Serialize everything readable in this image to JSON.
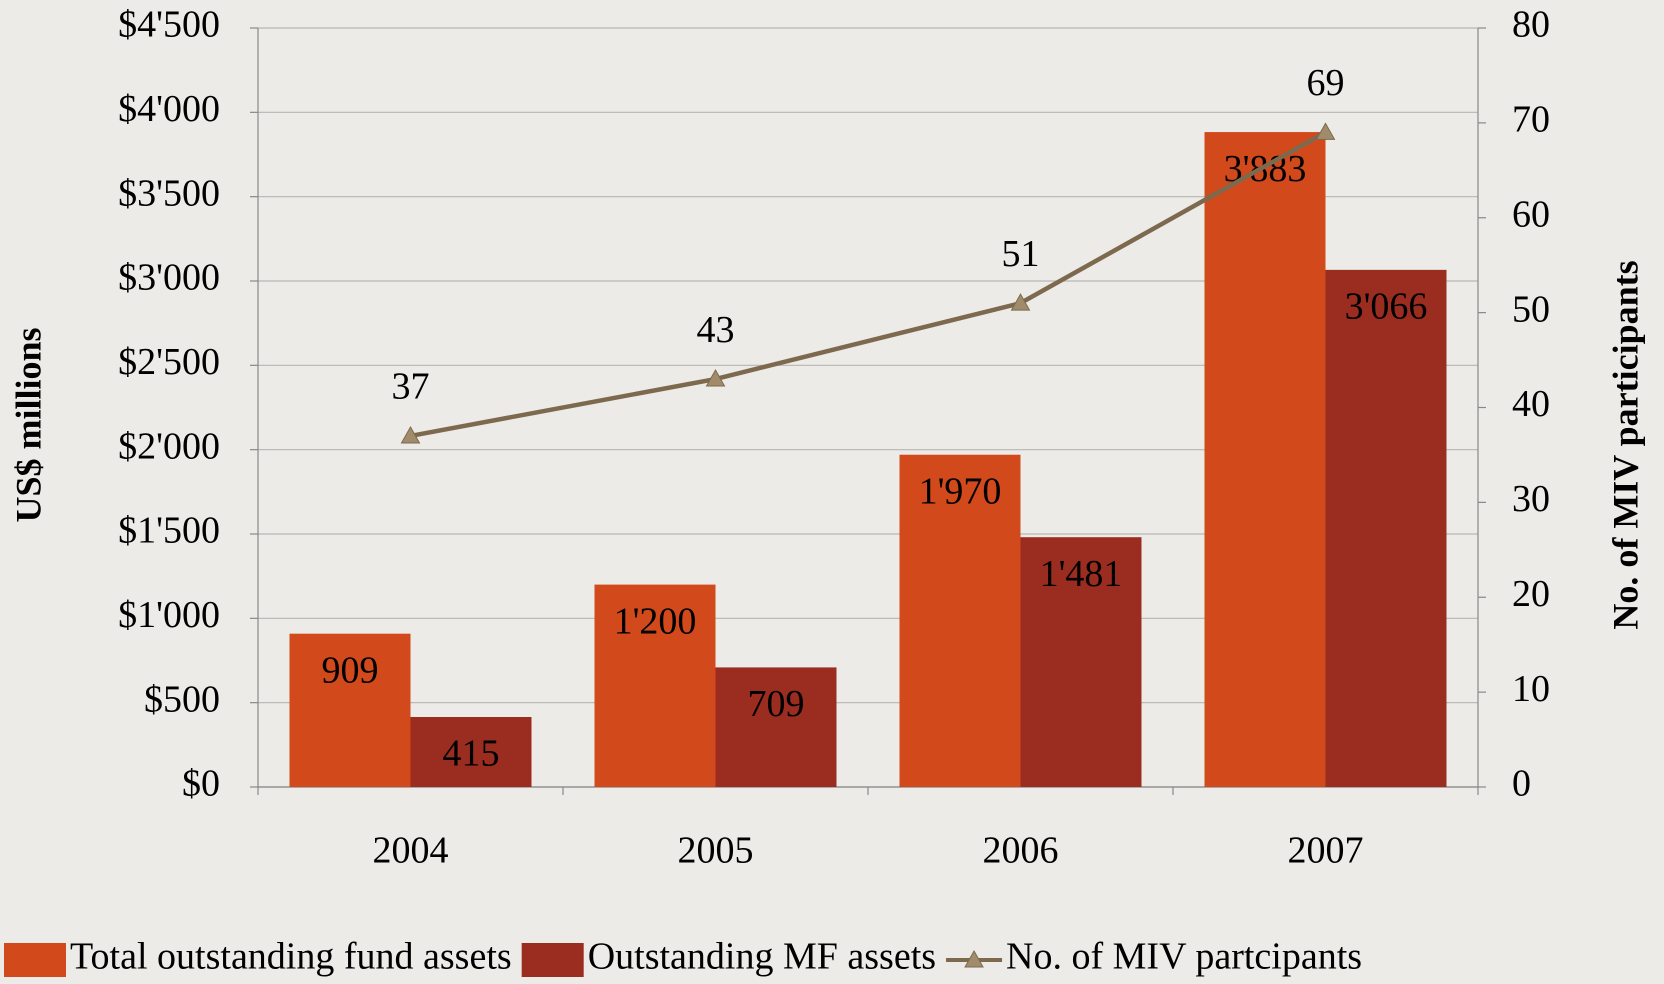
{
  "chart_data": {
    "type": "bar",
    "categories": [
      "2004",
      "2005",
      "2006",
      "2007"
    ],
    "series": [
      {
        "name": "Total outstanding fund assets",
        "color": "#d2491c",
        "values": [
          909,
          1200,
          1970,
          3883
        ],
        "value_labels": [
          "909",
          "1'200",
          "1'970",
          "3'883"
        ]
      },
      {
        "name": "Outstanding MF assets",
        "color": "#9b2c20",
        "values": [
          415,
          709,
          1481,
          3066
        ],
        "value_labels": [
          "415",
          "709",
          "1'481",
          "3'066"
        ]
      },
      {
        "name": "No. of MIV partcipants",
        "type": "line",
        "axis": "y2",
        "color": "#7d6a4e",
        "values": [
          37,
          43,
          51,
          69
        ]
      }
    ],
    "ylabel": "US$ millions",
    "y2label": "No. of MIV participants",
    "ylim": [
      0,
      4500
    ],
    "yticks": [
      {
        "value": 0,
        "label": "$0"
      },
      {
        "value": 500,
        "label": "$500"
      },
      {
        "value": 1000,
        "label": "$1'000"
      },
      {
        "value": 1500,
        "label": "$1'500"
      },
      {
        "value": 2000,
        "label": "$2'000"
      },
      {
        "value": 2500,
        "label": "$2'500"
      },
      {
        "value": 3000,
        "label": "$3'000"
      },
      {
        "value": 3500,
        "label": "$3'500"
      },
      {
        "value": 4000,
        "label": "$4'000"
      },
      {
        "value": 4500,
        "label": "$4'500"
      }
    ],
    "y2lim": [
      0,
      80
    ],
    "y2ticks": [
      0,
      10,
      20,
      30,
      40,
      50,
      60,
      70,
      80
    ],
    "grid": true,
    "legend": "bottom"
  }
}
